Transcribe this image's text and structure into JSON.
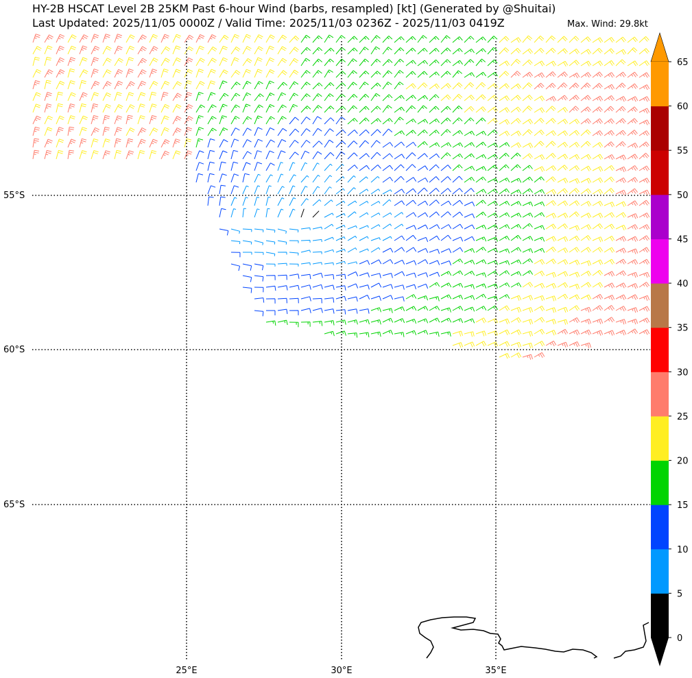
{
  "header": {
    "title_line1": "HY-2B HSCAT Level 2B 25KM Past 6-hour Wind (barbs, resampled) [kt] (Generated by @Shuitai)",
    "title_line2": "Last Updated: 2025/11/05 0000Z / Valid Time: 2025/11/03 0236Z - 2025/11/03 0419Z",
    "max_wind": "Max. Wind: 29.8kt"
  },
  "map": {
    "lat_labels": [
      "55°S",
      "60°S",
      "65°S"
    ],
    "lon_labels": [
      "25°E",
      "30°E",
      "35°E"
    ]
  },
  "colorbar": {
    "unit": "kt",
    "ticks": [
      "0",
      "5",
      "10",
      "15",
      "20",
      "25",
      "30",
      "35",
      "40",
      "45",
      "50",
      "55",
      "60",
      "65"
    ],
    "colors": [
      "#000000",
      "#0099ff",
      "#0044ff",
      "#00d400",
      "#ffee22",
      "#ff7c6c",
      "#ff0000",
      "#b87848",
      "#ee00ee",
      "#aa00cc",
      "#cc0000",
      "#aa0000",
      "#ff9900"
    ]
  }
}
